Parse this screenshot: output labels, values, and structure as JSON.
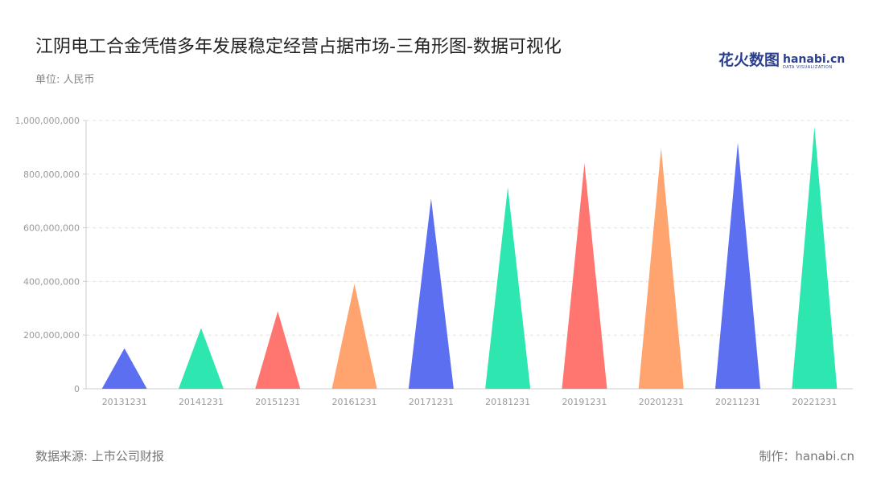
{
  "header": {
    "title": "江阴电工合金凭借多年发展稳定经营占据市场-三角形图-数据可视化",
    "unit": "单位: 人民币"
  },
  "logo": {
    "cn": "花火数图",
    "en": "hanabi.cn",
    "sub": "DATA VISUALIZATION"
  },
  "footer": {
    "source": "数据来源: 上市公司财报",
    "maker": "制作：hanabi.cn"
  },
  "chart_data": {
    "type": "bar",
    "mark": "triangle",
    "categories": [
      "20131231",
      "20141231",
      "20151231",
      "20161231",
      "20171231",
      "20181231",
      "20191231",
      "20201231",
      "20211231",
      "20221231"
    ],
    "values": [
      151000000,
      226000000,
      289000000,
      391000000,
      709000000,
      751000000,
      841000000,
      898000000,
      917000000,
      977000000
    ],
    "colors": [
      "#5b6ff0",
      "#2ee6b0",
      "#ff7670",
      "#ffa46f"
    ],
    "ylim": [
      0,
      1000000000
    ],
    "yticks": [
      0,
      200000000,
      400000000,
      600000000,
      800000000,
      1000000000
    ],
    "ytick_labels": [
      "0",
      "200,000,000",
      "400,000,000",
      "600,000,000",
      "800,000,000",
      "1,000,000,000"
    ],
    "grid": true,
    "xlabel": "",
    "ylabel": ""
  }
}
